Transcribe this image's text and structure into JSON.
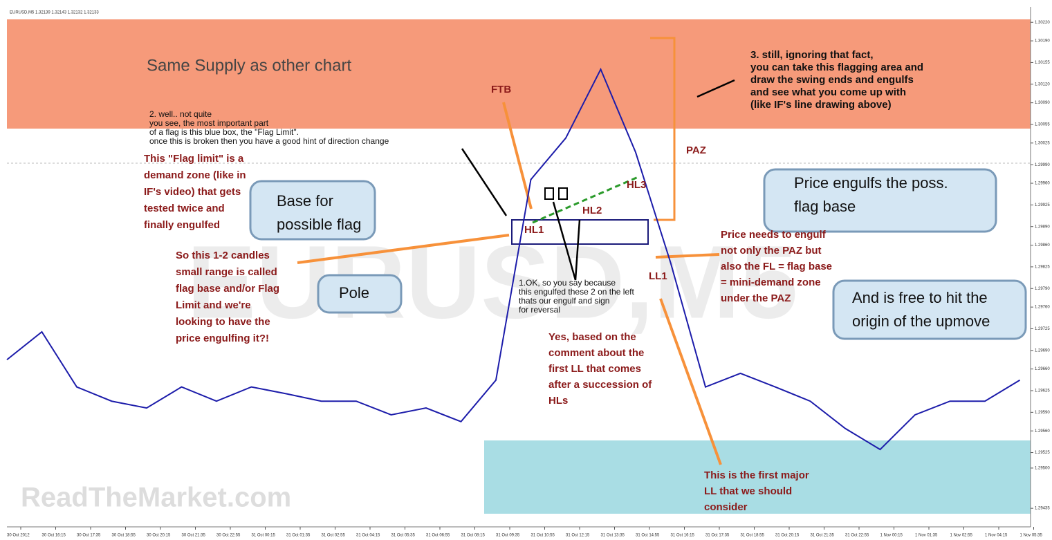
{
  "chart_data": {
    "type": "line",
    "title": "EURUSD,M5 1.32139 1.32143 1.32132 1.32133",
    "watermark": "EURUSD,M5",
    "site": "ReadTheMarket.com",
    "color": "#1c1caa",
    "categories": [
      "30 Oct 2012",
      "30 Oct 16:15",
      "30 Oct 17:35",
      "30 Oct 18:55",
      "30 Oct 20:15",
      "30 Oct 21:35",
      "30 Oct 22:55",
      "31 Oct 00:15",
      "31 Oct 01:35",
      "31 Oct 02:55",
      "31 Oct 04:15",
      "31 Oct 05:35",
      "31 Oct 06:55",
      "31 Oct 08:15",
      "31 Oct 09:35",
      "31 Oct 10:55",
      "31 Oct 12:15",
      "31 Oct 13:35",
      "31 Oct 14:55",
      "31 Oct 16:15",
      "31 Oct 17:35",
      "31 Oct 18:55",
      "31 Oct 20:15",
      "31 Oct 21:35",
      "31 Oct 22:55",
      "1 Nov 00:15",
      "1 Nov 01:35",
      "1 Nov 02:55",
      "1 Nov 04:15",
      "1 Nov 05:35"
    ],
    "values": [
      1.29675,
      1.2972,
      1.29631,
      1.29608,
      1.29597,
      1.29631,
      1.29608,
      1.29631,
      1.2962,
      1.29608,
      1.29608,
      1.29586,
      1.29597,
      1.29575,
      1.29642,
      1.29966,
      1.30033,
      1.30144,
      1.3001,
      1.29832,
      1.29631,
      1.29653,
      1.29631,
      1.29608,
      1.29564,
      1.2953,
      1.29586,
      1.29608,
      1.29608,
      1.29642
    ],
    "ylim": [
      1.29405,
      1.30256
    ],
    "yticks": [
      {
        "value": 1.3022,
        "label": "1.30220"
      },
      {
        "value": 1.3019,
        "label": "1.30190"
      },
      {
        "value": 1.30155,
        "label": "1.30155"
      },
      {
        "value": 1.3012,
        "label": "1.30120"
      },
      {
        "value": 1.3009,
        "label": "1.30090"
      },
      {
        "value": 1.30055,
        "label": "1.30055"
      },
      {
        "value": 1.30025,
        "label": "1.30025"
      },
      {
        "value": 1.2999,
        "label": "1.29990"
      },
      {
        "value": 1.2996,
        "label": "1.29960"
      },
      {
        "value": 1.29925,
        "label": "1.29925"
      },
      {
        "value": 1.2989,
        "label": "1.29890"
      },
      {
        "value": 1.2986,
        "label": "1.29860"
      },
      {
        "value": 1.29825,
        "label": "1.29825"
      },
      {
        "value": 1.2979,
        "label": "1.29790"
      },
      {
        "value": 1.2976,
        "label": "1.29760"
      },
      {
        "value": 1.29725,
        "label": "1.29725"
      },
      {
        "value": 1.2969,
        "label": "1.29690"
      },
      {
        "value": 1.2966,
        "label": "1.29660"
      },
      {
        "value": 1.29625,
        "label": "1.29625"
      },
      {
        "value": 1.2959,
        "label": "1.29590"
      },
      {
        "value": 1.2956,
        "label": "1.29560"
      },
      {
        "value": 1.29525,
        "label": "1.29525"
      },
      {
        "value": 1.295,
        "label": "1.29500"
      },
      {
        "value": 1.29435,
        "label": "1.29435"
      }
    ],
    "annotations": [
      {
        "lines": [
          "Same Supply as other chart"
        ]
      },
      {
        "lines": [
          "FTB"
        ]
      },
      {
        "lines": [
          "3. still, ignoring that fact,",
          "you can take this flagging area and",
          "draw the swing ends and engulfs",
          "and see what you come up with",
          "(like IF's line drawing above)"
        ]
      },
      {
        "lines": [
          "2. well.. not quite",
          "you see, the most important part",
          "of a flag is this blue box, the \"Flag Limit\".",
          "once this is broken then you have a good hint of direction change"
        ]
      },
      {
        "lines": [
          "PAZ"
        ]
      },
      {
        "lines": [
          "This \"Flag limit\" is a",
          "demand zone (like in",
          "IF's video) that gets",
          "tested twice and",
          "finally engulfed"
        ]
      },
      {
        "lines": [
          "HL3"
        ]
      },
      {
        "lines": [
          "HL2"
        ]
      },
      {
        "lines": [
          "HL1"
        ]
      },
      {
        "lines": [
          "LL1"
        ]
      },
      {
        "lines": [
          "Base for",
          "possible flag"
        ]
      },
      {
        "lines": [
          "Price engulfs the poss.",
          "flag base"
        ]
      },
      {
        "lines": [
          "Pole"
        ]
      },
      {
        "lines": [
          "And is free to hit the",
          "origin of the upmove"
        ]
      },
      {
        "lines": [
          "Price needs to engulf",
          "not only the PAZ but",
          "also the FL = flag base",
          "= mini-demand zone",
          "under the PAZ"
        ]
      },
      {
        "lines": [
          "So this 1-2 candles",
          "small range is called",
          "flag base and/or Flag",
          "Limit and we're",
          "looking to have the",
          "price engulfing it?!"
        ]
      },
      {
        "lines": [
          "1.OK, so you say because",
          "this engulfed these 2 on the left",
          "thats our engulf and sign",
          "for reversal"
        ]
      },
      {
        "lines": [
          "Yes, based on the",
          "comment about the",
          "first LL that comes",
          "after a succession of",
          "HLs"
        ]
      },
      {
        "lines": [
          "This is the first major",
          "LL that we should",
          "consider"
        ]
      }
    ]
  }
}
